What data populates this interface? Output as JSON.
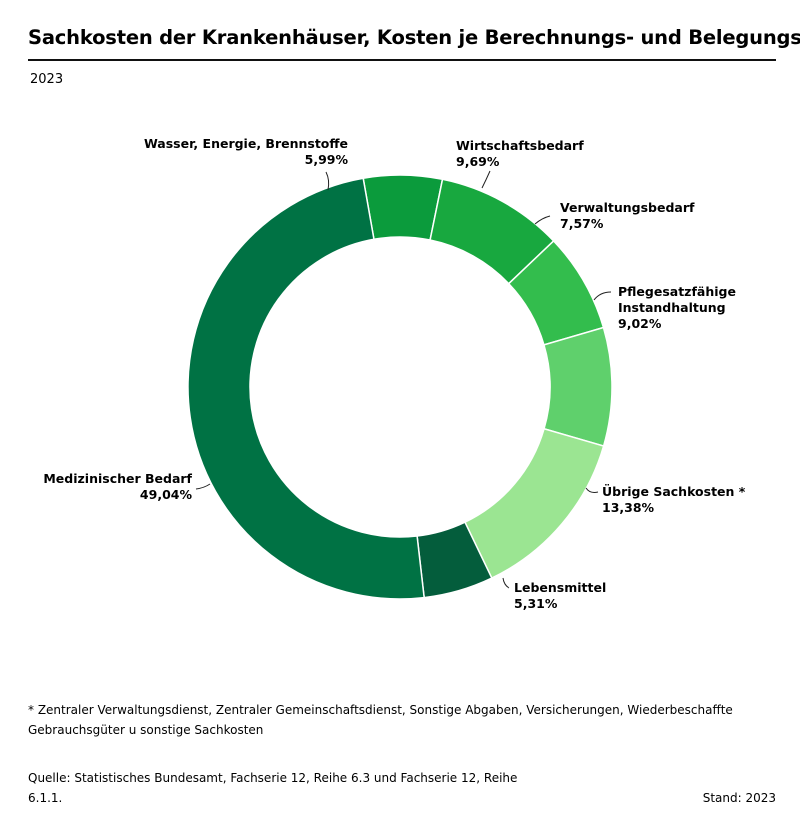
{
  "header": {
    "title": "Sachkosten der Krankenhäuser, Kosten je Berechnungs- und Belegungstag",
    "year": "2023"
  },
  "chart_data": {
    "type": "donut",
    "unit": "%",
    "series": [
      {
        "name": "Wasser, Energie, Brennstoffe",
        "lines": [
          "Wasser, Energie, Brennstoffe"
        ],
        "value": 5.99,
        "label": "5,99%",
        "color": "#0b9b3c"
      },
      {
        "name": "Wirtschaftsbedarf",
        "lines": [
          "Wirtschaftsbedarf"
        ],
        "value": 9.69,
        "label": "9,69%",
        "color": "#18a83f"
      },
      {
        "name": "Verwaltungsbedarf",
        "lines": [
          "Verwaltungsbedarf"
        ],
        "value": 7.57,
        "label": "7,57%",
        "color": "#33bd4d"
      },
      {
        "name": "Pflegesatzfähige Instandhaltung",
        "lines": [
          "Pflegesatzfähige",
          "Instandhaltung"
        ],
        "value": 9.02,
        "label": "9,02%",
        "color": "#5fd06c"
      },
      {
        "name": "Übrige Sachkosten *",
        "lines": [
          "Übrige Sachkosten *"
        ],
        "value": 13.38,
        "label": "13,38%",
        "color": "#9be592"
      },
      {
        "name": "Lebensmittel",
        "lines": [
          "Lebensmittel"
        ],
        "value": 5.31,
        "label": "5,31%",
        "color": "#045d3c"
      },
      {
        "name": "Medizinischer Bedarf",
        "lines": [
          "Medizinischer Bedarf"
        ],
        "value": 49.04,
        "label": "49,04%",
        "color": "#007244"
      }
    ]
  },
  "footnote": "* Zentraler Verwaltungsdienst, Zentraler Gemeinschaftsdienst, Sonstige Abgaben, Versicherungen, Wiederbeschaffte Gebrauchsgüter u sonstige Sachkosten",
  "source": "Quelle: Statistisches Bundesamt, Fachserie 12, Reihe 6.3 und Fachserie 12, Reihe 6.1.1.",
  "stand": "Stand: 2023"
}
